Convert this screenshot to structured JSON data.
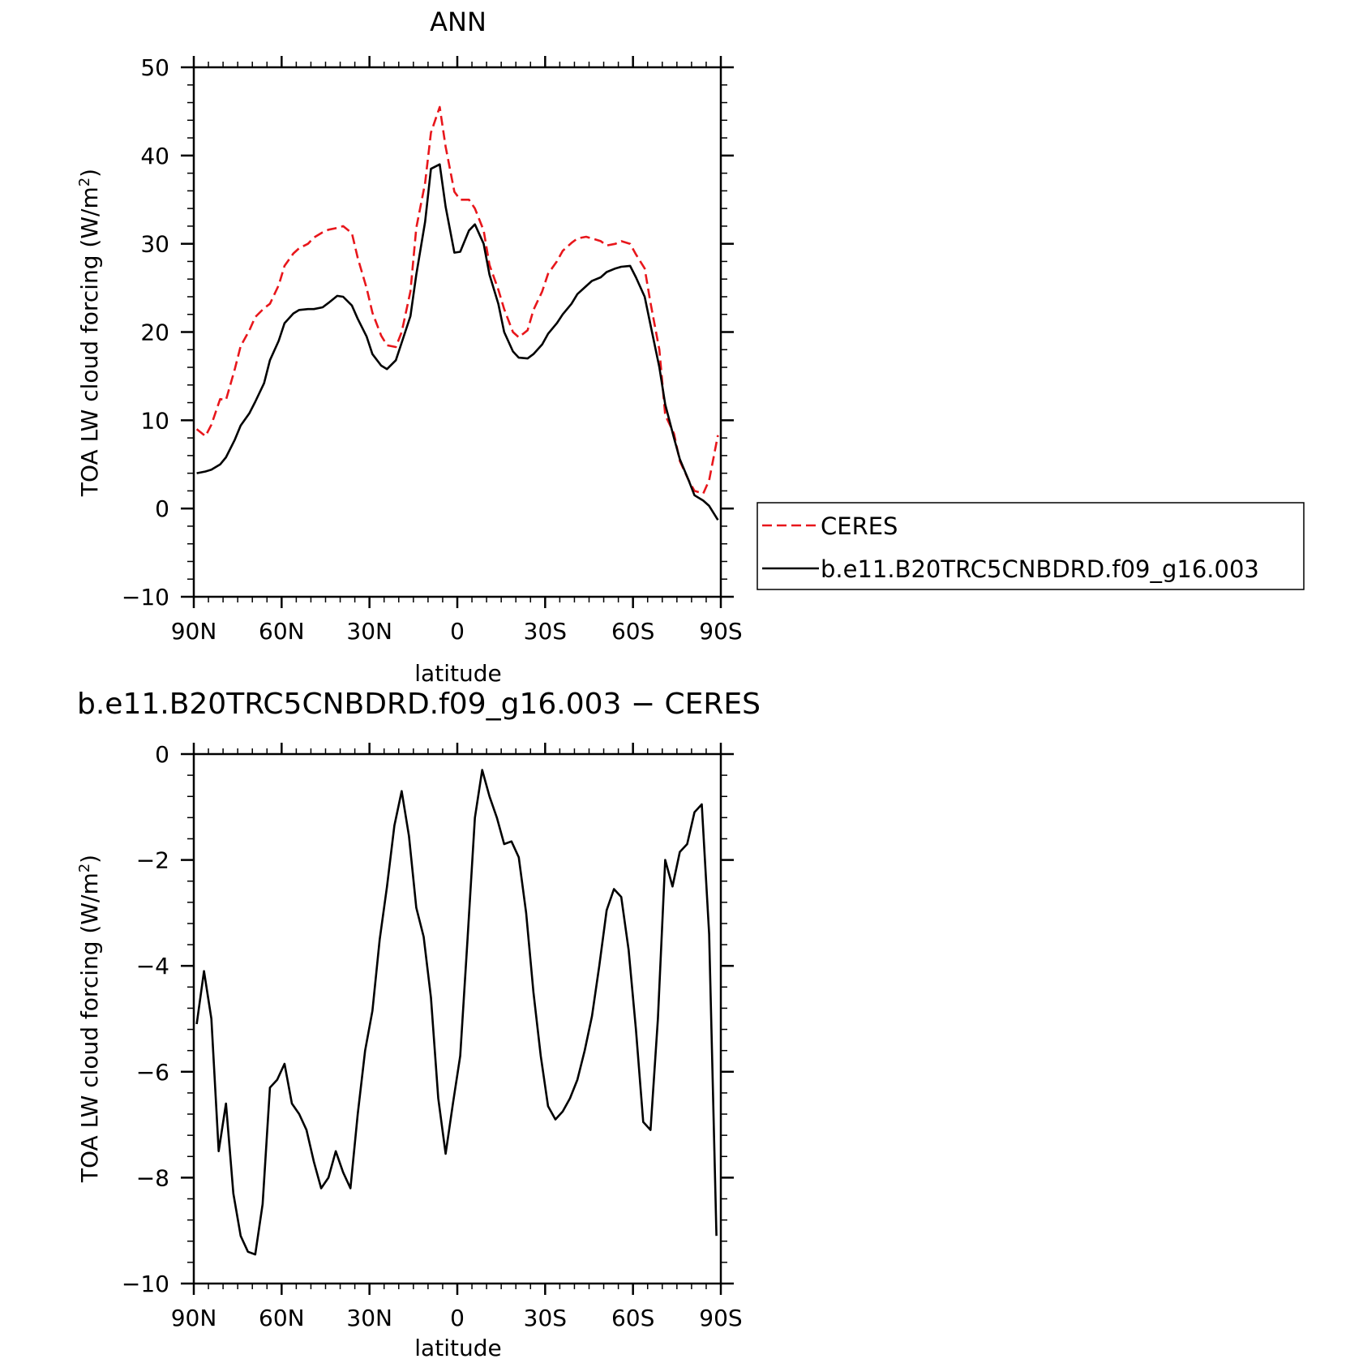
{
  "chart_data": [
    {
      "type": "line",
      "title": "ANN",
      "xlabel": "latitude",
      "ylabel": "TOA LW cloud forcing (W/m",
      "ylabel_sup": "2",
      "ylabel_end": ")",
      "xlim": [
        90,
        -90
      ],
      "ylim": [
        -10,
        50
      ],
      "x_ticks": [
        90,
        60,
        30,
        0,
        -30,
        -60,
        -90
      ],
      "x_tick_labels": [
        "90N",
        "60N",
        "30N",
        "0",
        "30S",
        "60S",
        "90S"
      ],
      "y_ticks": [
        -10,
        0,
        10,
        20,
        30,
        40,
        50
      ],
      "y_tick_labels": [
        "−10",
        "0",
        "10",
        "20",
        "30",
        "40",
        "50"
      ],
      "legend": {
        "placement": "right",
        "entries": [
          "CERES",
          "b.e11.B20TRC5CNBDRD.f09_g16.003"
        ]
      },
      "series": [
        {
          "name": "CERES",
          "color": "#e8161b",
          "dash": "dashed",
          "x": [
            89,
            86,
            84,
            81,
            79,
            76,
            74,
            71,
            69,
            66,
            64,
            61,
            59,
            56,
            54,
            51,
            49,
            46,
            44,
            41,
            39,
            36,
            34,
            31,
            29,
            26,
            24,
            21,
            19,
            16,
            14,
            11,
            9,
            6,
            4,
            1,
            -1,
            -4,
            -6,
            -9,
            -11,
            -14,
            -16,
            -19,
            -21,
            -24,
            -26,
            -29,
            -31,
            -34,
            -36,
            -39,
            -41,
            -44,
            -46,
            -49,
            -51,
            -54,
            -56,
            -59,
            -61,
            -64,
            -66,
            -69,
            -71,
            -74,
            -76,
            -79,
            -81,
            -84,
            -86,
            -89
          ],
          "y": [
            9.0,
            8.2,
            9.5,
            12.4,
            12.3,
            15.8,
            18.4,
            20.2,
            21.7,
            22.7,
            23.2,
            25.3,
            27.5,
            28.9,
            29.5,
            30.0,
            30.7,
            31.3,
            31.6,
            31.8,
            32.0,
            31.2,
            28.4,
            25.0,
            22.2,
            19.6,
            18.5,
            18.3,
            20.0,
            24.6,
            31.8,
            36.9,
            42.6,
            45.5,
            41.0,
            35.9,
            35.0,
            35.0,
            34.0,
            31.5,
            27.6,
            24.8,
            22.6,
            20.0,
            19.4,
            20.2,
            22.5,
            24.6,
            26.6,
            28.0,
            29.2,
            30.1,
            30.6,
            30.8,
            30.6,
            30.3,
            29.8,
            30.0,
            30.3,
            30.0,
            28.8,
            27.2,
            23.3,
            18.0,
            10.6,
            8.5,
            5.4,
            3.2,
            2.0,
            1.7,
            3.2,
            8.3
          ]
        },
        {
          "name": "b.e11.B20TRC5CNBDRD.f09_g16.003",
          "color": "#000000",
          "dash": "solid",
          "x": [
            89,
            86,
            84,
            81,
            79,
            76,
            74,
            71,
            69,
            66,
            64,
            61,
            59,
            56,
            54,
            51,
            49,
            46,
            44,
            41,
            39,
            36,
            34,
            31,
            29,
            26,
            24,
            21,
            19,
            16,
            14,
            11,
            9,
            6,
            4,
            1,
            -1,
            -4,
            -6,
            -9,
            -11,
            -14,
            -16,
            -19,
            -21,
            -24,
            -26,
            -29,
            -31,
            -34,
            -36,
            -39,
            -41,
            -44,
            -46,
            -49,
            -51,
            -54,
            -56,
            -59,
            -61,
            -64,
            -66,
            -69,
            -71,
            -74,
            -76,
            -79,
            -81,
            -84,
            -86,
            -89
          ],
          "y": [
            4.0,
            4.2,
            4.4,
            5.0,
            5.8,
            7.8,
            9.4,
            10.8,
            12.1,
            14.2,
            16.8,
            19.0,
            21.0,
            22.1,
            22.5,
            22.6,
            22.6,
            22.8,
            23.3,
            24.1,
            24.0,
            23.0,
            21.5,
            19.5,
            17.5,
            16.2,
            15.8,
            16.8,
            18.8,
            21.8,
            26.5,
            32.5,
            38.5,
            39.0,
            34.2,
            29.0,
            29.1,
            31.5,
            32.2,
            30.0,
            26.5,
            23.2,
            20.0,
            17.8,
            17.1,
            17.0,
            17.5,
            18.6,
            19.8,
            21.0,
            22.0,
            23.2,
            24.3,
            25.2,
            25.8,
            26.2,
            26.8,
            27.2,
            27.4,
            27.5,
            26.2,
            24.0,
            20.8,
            16.0,
            11.8,
            8.0,
            5.6,
            3.2,
            1.5,
            0.9,
            0.3,
            -1.3
          ]
        }
      ]
    },
    {
      "type": "line",
      "title": "b.e11.B20TRC5CNBDRD.f09_g16.003 − CERES",
      "xlabel": "latitude",
      "ylabel": "TOA LW cloud forcing (W/m",
      "ylabel_sup": "2",
      "ylabel_end": ")",
      "xlim": [
        90,
        -90
      ],
      "ylim": [
        -10,
        0
      ],
      "x_ticks": [
        90,
        60,
        30,
        0,
        -30,
        -60,
        -90
      ],
      "x_tick_labels": [
        "90N",
        "60N",
        "30N",
        "0",
        "30S",
        "60S",
        "90S"
      ],
      "y_ticks": [
        -10,
        -8,
        -6,
        -4,
        -2,
        0
      ],
      "y_tick_labels": [
        "−10",
        "−8",
        "−6",
        "−4",
        "−2",
        "0"
      ],
      "series": [
        {
          "color": "#000000",
          "dash": "solid",
          "x": [
            89,
            86.5,
            84,
            81.5,
            79,
            76.5,
            74,
            71.5,
            69,
            66.5,
            64,
            61.5,
            59,
            56.5,
            54,
            51.5,
            49,
            46.5,
            44,
            41.5,
            39,
            36.5,
            34,
            31.5,
            29,
            26.5,
            24,
            21.5,
            19,
            16.5,
            14,
            11.5,
            9,
            6.5,
            4,
            1.5,
            -1,
            -3.5,
            -6,
            -8.5,
            -11,
            -13.5,
            -16,
            -18.5,
            -21,
            -23.5,
            -26,
            -28.5,
            -31,
            -33.5,
            -36,
            -38.5,
            -41,
            -43.5,
            -46,
            -48.5,
            -51,
            -53.5,
            -56,
            -58.5,
            -61,
            -63.5,
            -66,
            -68.5,
            -71,
            -73.5,
            -76,
            -78.5,
            -81,
            -83.5,
            -86,
            -88.5
          ],
          "y": [
            -5.1,
            -4.1,
            -5.0,
            -7.5,
            -6.6,
            -8.3,
            -9.1,
            -9.4,
            -9.45,
            -8.5,
            -6.3,
            -6.15,
            -5.85,
            -6.6,
            -6.8,
            -7.1,
            -7.7,
            -8.2,
            -8.0,
            -7.5,
            -7.9,
            -8.2,
            -6.8,
            -5.6,
            -4.85,
            -3.5,
            -2.5,
            -1.35,
            -0.7,
            -1.55,
            -2.9,
            -3.45,
            -4.6,
            -6.5,
            -7.55,
            -6.6,
            -5.7,
            -3.5,
            -1.2,
            -0.3,
            -0.8,
            -1.2,
            -1.7,
            -1.65,
            -1.95,
            -3.0,
            -4.5,
            -5.7,
            -6.65,
            -6.9,
            -6.75,
            -6.5,
            -6.15,
            -5.6,
            -4.95,
            -4.0,
            -2.95,
            -2.55,
            -2.7,
            -3.7,
            -5.2,
            -6.95,
            -7.1,
            -5.0,
            -2.0,
            -2.5,
            -1.85,
            -1.7,
            -1.1,
            -0.95,
            -3.4,
            -9.1
          ]
        }
      ]
    }
  ]
}
